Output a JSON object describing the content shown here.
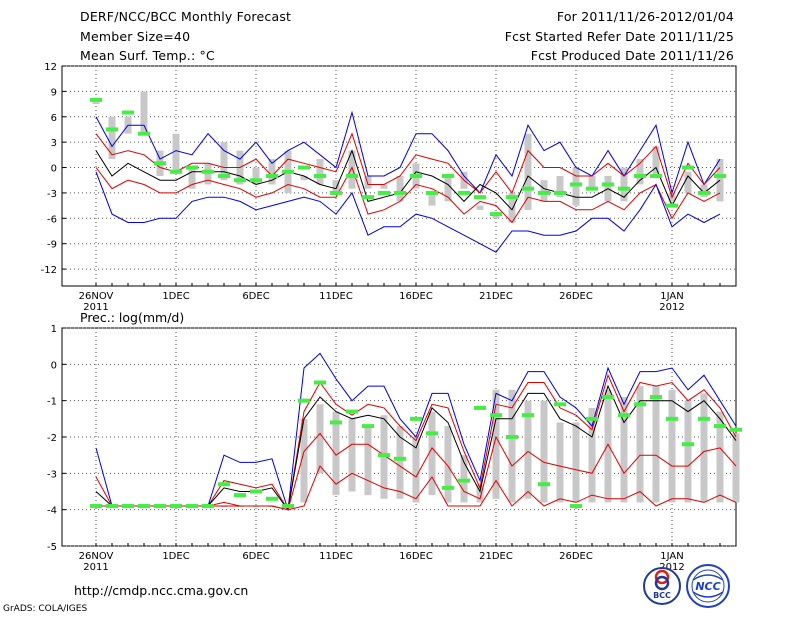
{
  "header": {
    "title": "DERF/NCC/BCC Monthly Forecast",
    "member_size": "Member Size=40",
    "variable1": "Mean Surf. Temp.: °C",
    "period": "For 2011/11/26-2012/01/04",
    "started": "Fcst Started Refer Date 2011/11/25",
    "produced": "Fcst Produced Date 2011/11/26"
  },
  "footer": {
    "url": "http://cmdp.ncc.cma.gov.cn",
    "grads": "GrADS: COLA/IGES",
    "logo_left": "BCC",
    "logo_right": "NCC"
  },
  "chart_data": [
    {
      "type": "line",
      "title": "Mean Surf. Temp.: °C",
      "x_ticks": [
        {
          "day": 0,
          "label": "26NOV",
          "label2": "2011"
        },
        {
          "day": 5,
          "label": "1DEC"
        },
        {
          "day": 10,
          "label": "6DEC"
        },
        {
          "day": 15,
          "label": "11DEC"
        },
        {
          "day": 20,
          "label": "16DEC"
        },
        {
          "day": 25,
          "label": "21DEC"
        },
        {
          "day": 30,
          "label": "26DEC"
        },
        {
          "day": 36,
          "label": "1JAN",
          "label2": "2012"
        }
      ],
      "ylim": [
        -14,
        12
      ],
      "yticks": [
        -12,
        -9,
        -6,
        -3,
        0,
        3,
        6,
        9,
        12
      ],
      "ytick_labels": [
        "-12",
        "-9",
        "-6",
        "-3",
        "0",
        "3",
        "6",
        "9",
        "12"
      ],
      "grid": true,
      "series": [
        {
          "name": "ensemble max",
          "color": "#0000e0",
          "values": [
            6,
            2.5,
            5,
            5,
            1,
            2,
            1.5,
            4,
            2,
            1,
            3,
            0.5,
            2,
            3,
            1.5,
            0,
            6.5,
            -1,
            -1,
            0,
            4,
            4,
            2,
            -1,
            -3,
            1.5,
            -1,
            5,
            2,
            3,
            0,
            -1,
            2,
            -1,
            2,
            5,
            -3,
            3,
            -2,
            1
          ]
        },
        {
          "name": "90th percentile",
          "color": "#e00000",
          "values": [
            4,
            1.5,
            2,
            1.5,
            0,
            -0.5,
            0.5,
            0.5,
            0,
            0,
            1,
            -1,
            1,
            0.5,
            0,
            -0.5,
            4,
            -2,
            -2,
            -1,
            1.5,
            1,
            0.5,
            -1.5,
            -3,
            -0.5,
            -3,
            2,
            0,
            0,
            -1,
            -1,
            0.5,
            -1,
            0.5,
            2.5,
            -3.5,
            0.5,
            -2,
            0
          ]
        },
        {
          "name": "ensemble mean",
          "color": "#000000",
          "values": [
            2,
            -1,
            0.5,
            -0.5,
            -1.5,
            -1.5,
            -0.5,
            -0.5,
            -0.5,
            -1,
            -2,
            -1.5,
            -0.5,
            -1,
            -2,
            -2.5,
            2,
            -4,
            -3.5,
            -3,
            -0.5,
            -1,
            -2,
            -4,
            -2,
            -3,
            -5,
            -1,
            -2.5,
            -3,
            -3.5,
            -3.5,
            -2.5,
            -3.5,
            -1.5,
            0,
            -4.5,
            -1,
            -3,
            -1.5
          ]
        },
        {
          "name": "10th percentile",
          "color": "#e00000",
          "values": [
            0,
            -2.5,
            -1.5,
            -2,
            -3,
            -3,
            -2,
            -1.5,
            -2,
            -2.5,
            -3.5,
            -3,
            -2,
            -2.5,
            -3.5,
            -3.5,
            0,
            -5.5,
            -5,
            -4,
            -2,
            -2.5,
            -3.5,
            -5.5,
            -4,
            -4.5,
            -6.5,
            -3.5,
            -4,
            -4,
            -5,
            -5,
            -4,
            -5,
            -3,
            -2,
            -6,
            -3,
            -4,
            -3
          ]
        },
        {
          "name": "ensemble min",
          "color": "#0000e0",
          "values": [
            -0.5,
            -5.5,
            -6.5,
            -6.5,
            -6,
            -6,
            -4,
            -3.5,
            -3.5,
            -4,
            -5,
            -4.5,
            -4,
            -3.5,
            -4,
            -5.5,
            -3,
            -8,
            -7,
            -7,
            -5.5,
            -6,
            -7,
            -8,
            -9,
            -10,
            -7.5,
            -7.5,
            -8,
            -8,
            -7.5,
            -6,
            -6,
            -7.5,
            -5,
            -2,
            -7,
            -5.5,
            -6.5,
            -5.5
          ]
        }
      ],
      "bars_min": [
        7.5,
        1,
        4,
        4,
        -1,
        -0.5,
        -2.5,
        -2,
        -1.5,
        -2,
        -2,
        -2,
        -3,
        -1.5,
        -2,
        -3,
        -2.5,
        -1,
        -2.5,
        -4,
        -2.5,
        -4.5,
        -4,
        -2.5,
        -5,
        -6,
        -6.5,
        -5,
        -4,
        -3.5,
        -4.5,
        -2.5,
        -4,
        -4,
        -2,
        -1,
        -4,
        -3,
        -3.5,
        -4
      ],
      "bars_max": [
        8,
        6,
        6,
        9,
        2,
        4,
        0,
        0.5,
        3,
        2,
        0,
        1,
        2,
        -1,
        1,
        -1.5,
        2,
        -2.5,
        -2,
        -1,
        0.5,
        -3,
        -1,
        -0.5,
        -4.5,
        -5.5,
        -3,
        4,
        -1.5,
        -1,
        0,
        -1,
        -1,
        0,
        1,
        2.5,
        -3,
        -0.5,
        -2,
        1
      ],
      "observed": [
        8,
        4.5,
        6.5,
        4,
        0.5,
        -0.5,
        0,
        -0.5,
        -1,
        -1.5,
        -1.5,
        -1,
        -0.5,
        0,
        -1,
        -3,
        -1,
        -3.5,
        -3,
        -3,
        -1,
        -3,
        -1,
        -3,
        -3.5,
        -5.5,
        -3.5,
        -2.5,
        -3,
        -3,
        -2,
        -2.5,
        -2,
        -2.5,
        -1,
        -1,
        -4.5,
        0,
        -3,
        -1
      ]
    },
    {
      "type": "line",
      "title": "Prec.: log(mm/d)",
      "x_ticks": [
        {
          "day": 0,
          "label": "26NOV",
          "label2": "2011"
        },
        {
          "day": 5,
          "label": "1DEC"
        },
        {
          "day": 10,
          "label": "6DEC"
        },
        {
          "day": 15,
          "label": "11DEC"
        },
        {
          "day": 20,
          "label": "16DEC"
        },
        {
          "day": 25,
          "label": "21DEC"
        },
        {
          "day": 30,
          "label": "26DEC"
        },
        {
          "day": 36,
          "label": "1JAN",
          "label2": "2012"
        }
      ],
      "ylim": [
        -5,
        1
      ],
      "yticks": [
        -5,
        -4,
        -3,
        -2,
        -1,
        0,
        1
      ],
      "ytick_labels": [
        "-5",
        "-4",
        "-3",
        "-2",
        "-1",
        "0",
        "1"
      ],
      "grid": true,
      "series": [
        {
          "name": "ensemble max",
          "color": "#0000e0",
          "values": [
            -2.3,
            -3.9,
            -3.9,
            -3.9,
            -3.9,
            -3.9,
            -3.9,
            -3.9,
            -2.5,
            -2.7,
            -2.7,
            -2.6,
            -4,
            -0.1,
            0.3,
            -0.4,
            -1,
            -0.6,
            -0.6,
            -1.5,
            -2,
            -0.8,
            -0.8,
            -2.2,
            -3.2,
            -0.8,
            -1,
            -0.2,
            -0.2,
            -0.9,
            -1.2,
            -1.7,
            -0.1,
            -1.1,
            -0.2,
            -0.2,
            -0.1,
            -0.7,
            -0.3,
            -1,
            -1.7
          ]
        },
        {
          "name": "90th percentile",
          "color": "#e00000",
          "values": [
            -3.1,
            -3.9,
            -3.9,
            -3.9,
            -3.9,
            -3.9,
            -3.9,
            -3.9,
            -3.2,
            -3.3,
            -3.4,
            -3.3,
            -4,
            -1.3,
            -0.5,
            -1.1,
            -1.4,
            -1.1,
            -1.2,
            -1.7,
            -2.1,
            -1.1,
            -1.2,
            -2.4,
            -3.4,
            -1.1,
            -1.2,
            -0.5,
            -0.5,
            -1.2,
            -1.4,
            -1.8,
            -0.3,
            -1.3,
            -0.5,
            -0.6,
            -0.5,
            -1,
            -0.7,
            -1.2,
            -2
          ]
        },
        {
          "name": "ensemble mean",
          "color": "#000000",
          "values": [
            -3.5,
            -3.9,
            -3.9,
            -3.9,
            -3.9,
            -3.9,
            -3.9,
            -3.9,
            -3.4,
            -3.5,
            -3.5,
            -3.4,
            -4,
            -1.5,
            -0.9,
            -1.3,
            -1.5,
            -1.4,
            -1.5,
            -2,
            -2.3,
            -1.2,
            -1.6,
            -2.7,
            -3.5,
            -1.5,
            -1.5,
            -0.8,
            -0.8,
            -1.5,
            -1.7,
            -2,
            -0.6,
            -1.6,
            -1,
            -1,
            -1,
            -1.3,
            -1,
            -1.5,
            -2.1
          ]
        },
        {
          "name": "10th percentile",
          "color": "#e00000",
          "values": [
            -3.9,
            -3.9,
            -3.9,
            -3.9,
            -3.9,
            -3.9,
            -3.9,
            -3.9,
            -3.8,
            -3.9,
            -3.9,
            -3.9,
            -4,
            -2.4,
            -1.9,
            -2.5,
            -2.2,
            -2.2,
            -2.5,
            -2.8,
            -3.1,
            -2.3,
            -2.8,
            -3.5,
            -3.7,
            -2,
            -2.8,
            -2.4,
            -2.7,
            -2.8,
            -2.9,
            -3,
            -2.2,
            -3,
            -2.5,
            -2.5,
            -2.8,
            -2.8,
            -2.4,
            -2.3,
            -2.8
          ]
        },
        {
          "name": "ensemble min",
          "color": "#e00000",
          "values": [
            -3.9,
            -3.9,
            -3.9,
            -3.9,
            -3.9,
            -3.9,
            -3.9,
            -3.9,
            -3.9,
            -3.9,
            -3.9,
            -3.9,
            -4,
            -3.9,
            -2.8,
            -3.3,
            -3,
            -3.2,
            -3.4,
            -3.5,
            -3.7,
            -3.1,
            -3.9,
            -3.9,
            -3.9,
            -3.2,
            -3.9,
            -3.5,
            -3.9,
            -3.7,
            -3.8,
            -3.6,
            -3.7,
            -3.7,
            -3.5,
            -3.9,
            -3.7,
            -3.7,
            -3.8,
            -3.6,
            -3.8
          ]
        }
      ],
      "bars_min": [
        -3.9,
        -3.9,
        -3.9,
        -3.9,
        -3.9,
        -3.9,
        -3.9,
        -3.9,
        -3.9,
        -3.9,
        -3.9,
        -3.9,
        -3.9,
        -3.8,
        -3,
        -3.6,
        -3.5,
        -3.6,
        -3.7,
        -3.7,
        -3.8,
        -3.6,
        -3.8,
        -3.8,
        -3.8,
        -3.7,
        -3.8,
        -3.7,
        -3.8,
        -3.8,
        -3.8,
        -3.8,
        -3.8,
        -3.8,
        -3.8,
        -3.8,
        -3.8,
        -3.8,
        -3.8,
        -3.8,
        -3.8
      ],
      "bars_max": [
        -3.9,
        -3.9,
        -3.9,
        -3.9,
        -3.9,
        -3.9,
        -3.9,
        -3.9,
        -3.9,
        -3.9,
        -3.9,
        -3.9,
        -3.9,
        -1.5,
        -1.1,
        -1.3,
        -1.5,
        -1.7,
        -1.4,
        -1.7,
        -2,
        -1.3,
        -1.7,
        -2.5,
        -3.3,
        -0.7,
        -0.7,
        -1,
        -1,
        -1.6,
        -1.6,
        -1.2,
        -0.7,
        -0.9,
        -0.6,
        -0.6,
        -0.7,
        -1,
        -0.8,
        -1.3,
        -1.9
      ],
      "observed": [
        -3.9,
        -3.9,
        -3.9,
        -3.9,
        -3.9,
        -3.9,
        -3.9,
        -3.9,
        -3.3,
        -3.6,
        -3.5,
        -3.7,
        -3.9,
        -1,
        -0.5,
        -1.6,
        -1.3,
        -1.7,
        -2.5,
        -2.6,
        -1.5,
        -1.9,
        -3.4,
        -3.2,
        -1.2,
        -1.4,
        -2,
        -1.4,
        -3.3,
        -1.1,
        -3.9,
        -1.5,
        -0.9,
        -1.4,
        -1.1,
        -0.9,
        -1.5,
        -2.2,
        -1.5,
        -1.7,
        -1.8
      ]
    }
  ]
}
